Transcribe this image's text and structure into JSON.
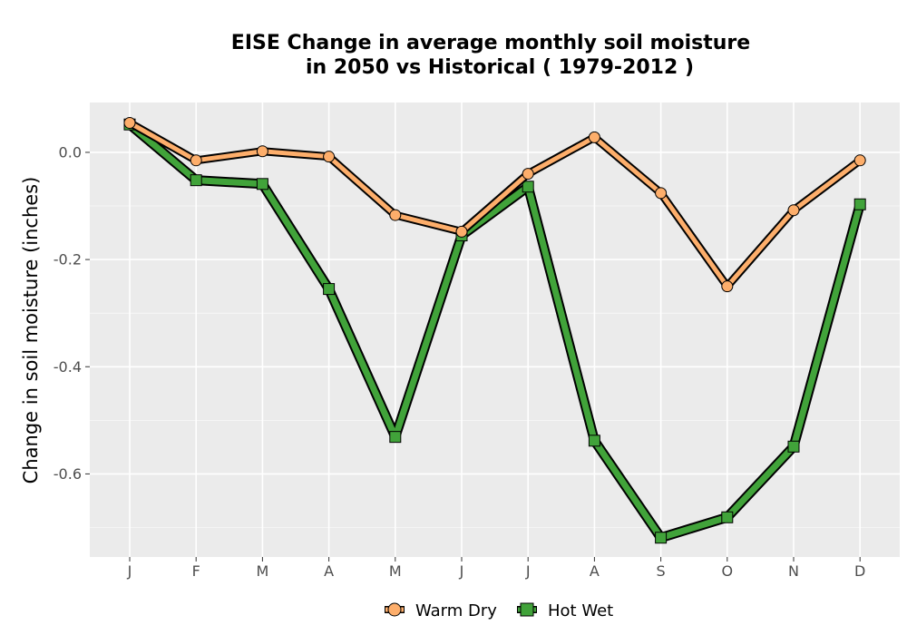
{
  "chart_data": {
    "type": "line",
    "title": "EISE  Change in average monthly soil moisture\nin 2050 vs Historical ( 1979-2012 )",
    "title_lines": [
      "EISE  Change in average monthly soil moisture",
      "in 2050 vs Historical ( 1979-2012 )"
    ],
    "xlabel": "",
    "ylabel": "Change in soil moisture (inches)",
    "categories": [
      "J",
      "F",
      "M",
      "A",
      "M",
      "J",
      "J",
      "A",
      "S",
      "O",
      "N",
      "D"
    ],
    "ylim": [
      -0.755,
      0.093
    ],
    "yticks": [
      0.0,
      -0.2,
      -0.4,
      -0.6
    ],
    "ytick_labels": [
      "0.0",
      "-0.2",
      "-0.4",
      "-0.6"
    ],
    "grid": true,
    "legend_position": "bottom",
    "series": [
      {
        "name": "Warm Dry",
        "values": [
          0.055,
          -0.015,
          0.002,
          -0.008,
          -0.117,
          -0.148,
          -0.04,
          0.028,
          -0.076,
          -0.25,
          -0.108,
          -0.015
        ],
        "color": "#fdae6b",
        "marker": "circle"
      },
      {
        "name": "Hot Wet",
        "values": [
          0.052,
          -0.052,
          -0.059,
          -0.255,
          -0.531,
          -0.155,
          -0.064,
          -0.538,
          -0.719,
          -0.681,
          -0.549,
          -0.097
        ],
        "color": "#41a33a",
        "marker": "square"
      }
    ],
    "panel_background": "#ebebeb",
    "grid_color": "#ffffff"
  }
}
